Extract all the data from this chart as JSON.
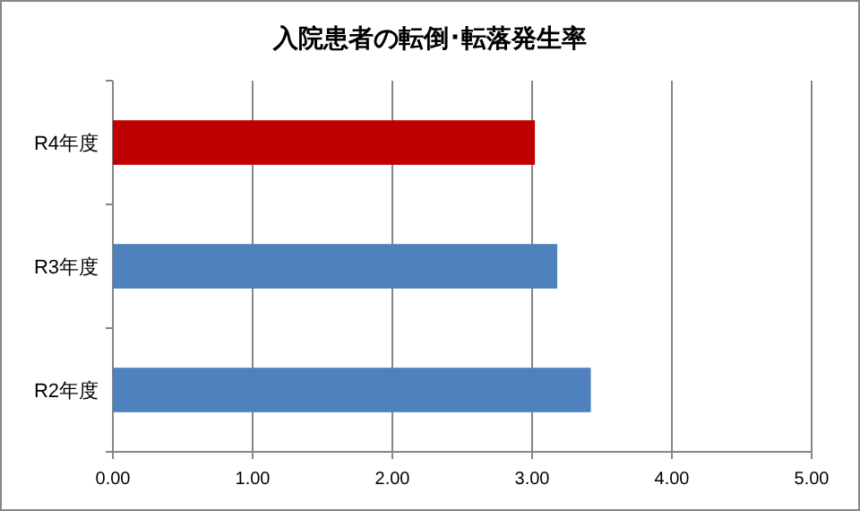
{
  "chart_data": {
    "type": "bar",
    "orientation": "horizontal",
    "title": "入院患者の転倒･転落発生率",
    "categories": [
      "R4年度",
      "R3年度",
      "R2年度"
    ],
    "values": [
      3.02,
      3.18,
      3.42
    ],
    "colors": [
      "#c00000",
      "#4f81bd",
      "#4f81bd"
    ],
    "xlim": [
      0,
      5
    ],
    "xticks": [
      {
        "value": 0,
        "label": "0.00"
      },
      {
        "value": 1,
        "label": "1.00"
      },
      {
        "value": 2,
        "label": "2.00"
      },
      {
        "value": 3,
        "label": "3.00"
      },
      {
        "value": 4,
        "label": "4.00"
      },
      {
        "value": 5,
        "label": "5.00"
      }
    ],
    "grid": "x"
  }
}
